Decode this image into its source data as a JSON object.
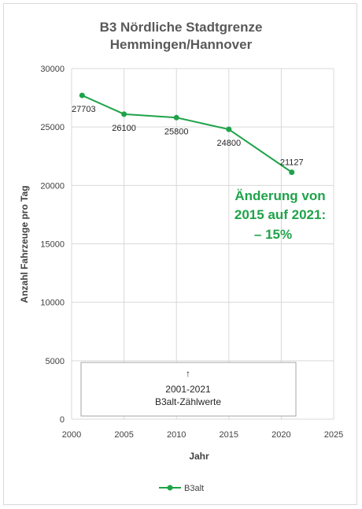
{
  "chart_data": {
    "type": "line",
    "title_lines": [
      "B3 Nördliche Stadtgrenze",
      "Hemmingen/Hannover"
    ],
    "xlabel": "Jahr",
    "ylabel": "Anzahl Fahrzeuge pro Tag",
    "xlim": [
      2000,
      2025
    ],
    "ylim": [
      0,
      30000
    ],
    "x_ticks": [
      "2000",
      "2005",
      "2010",
      "2015",
      "2020",
      "2025"
    ],
    "y_ticks": [
      "0",
      "5000",
      "10000",
      "15000",
      "20000",
      "25000",
      "30000"
    ],
    "grid": true,
    "legend_position": "bottom",
    "series": [
      {
        "name": "B3alt",
        "color": "#1fa34a",
        "x": [
          2001,
          2005,
          2010,
          2015,
          2021
        ],
        "y": [
          27703,
          26100,
          25800,
          24800,
          21127
        ],
        "labels": [
          "27703",
          "26100",
          "25800",
          "24800",
          "21127"
        ]
      }
    ],
    "annotation": {
      "lines": [
        "Änderung von",
        "2015 auf 2021:",
        "– 15%"
      ],
      "color": "#1fa34a"
    },
    "note_box": {
      "arrow": "↑",
      "lines": [
        "2001-2021",
        "B3alt-Zählwerte"
      ]
    }
  }
}
